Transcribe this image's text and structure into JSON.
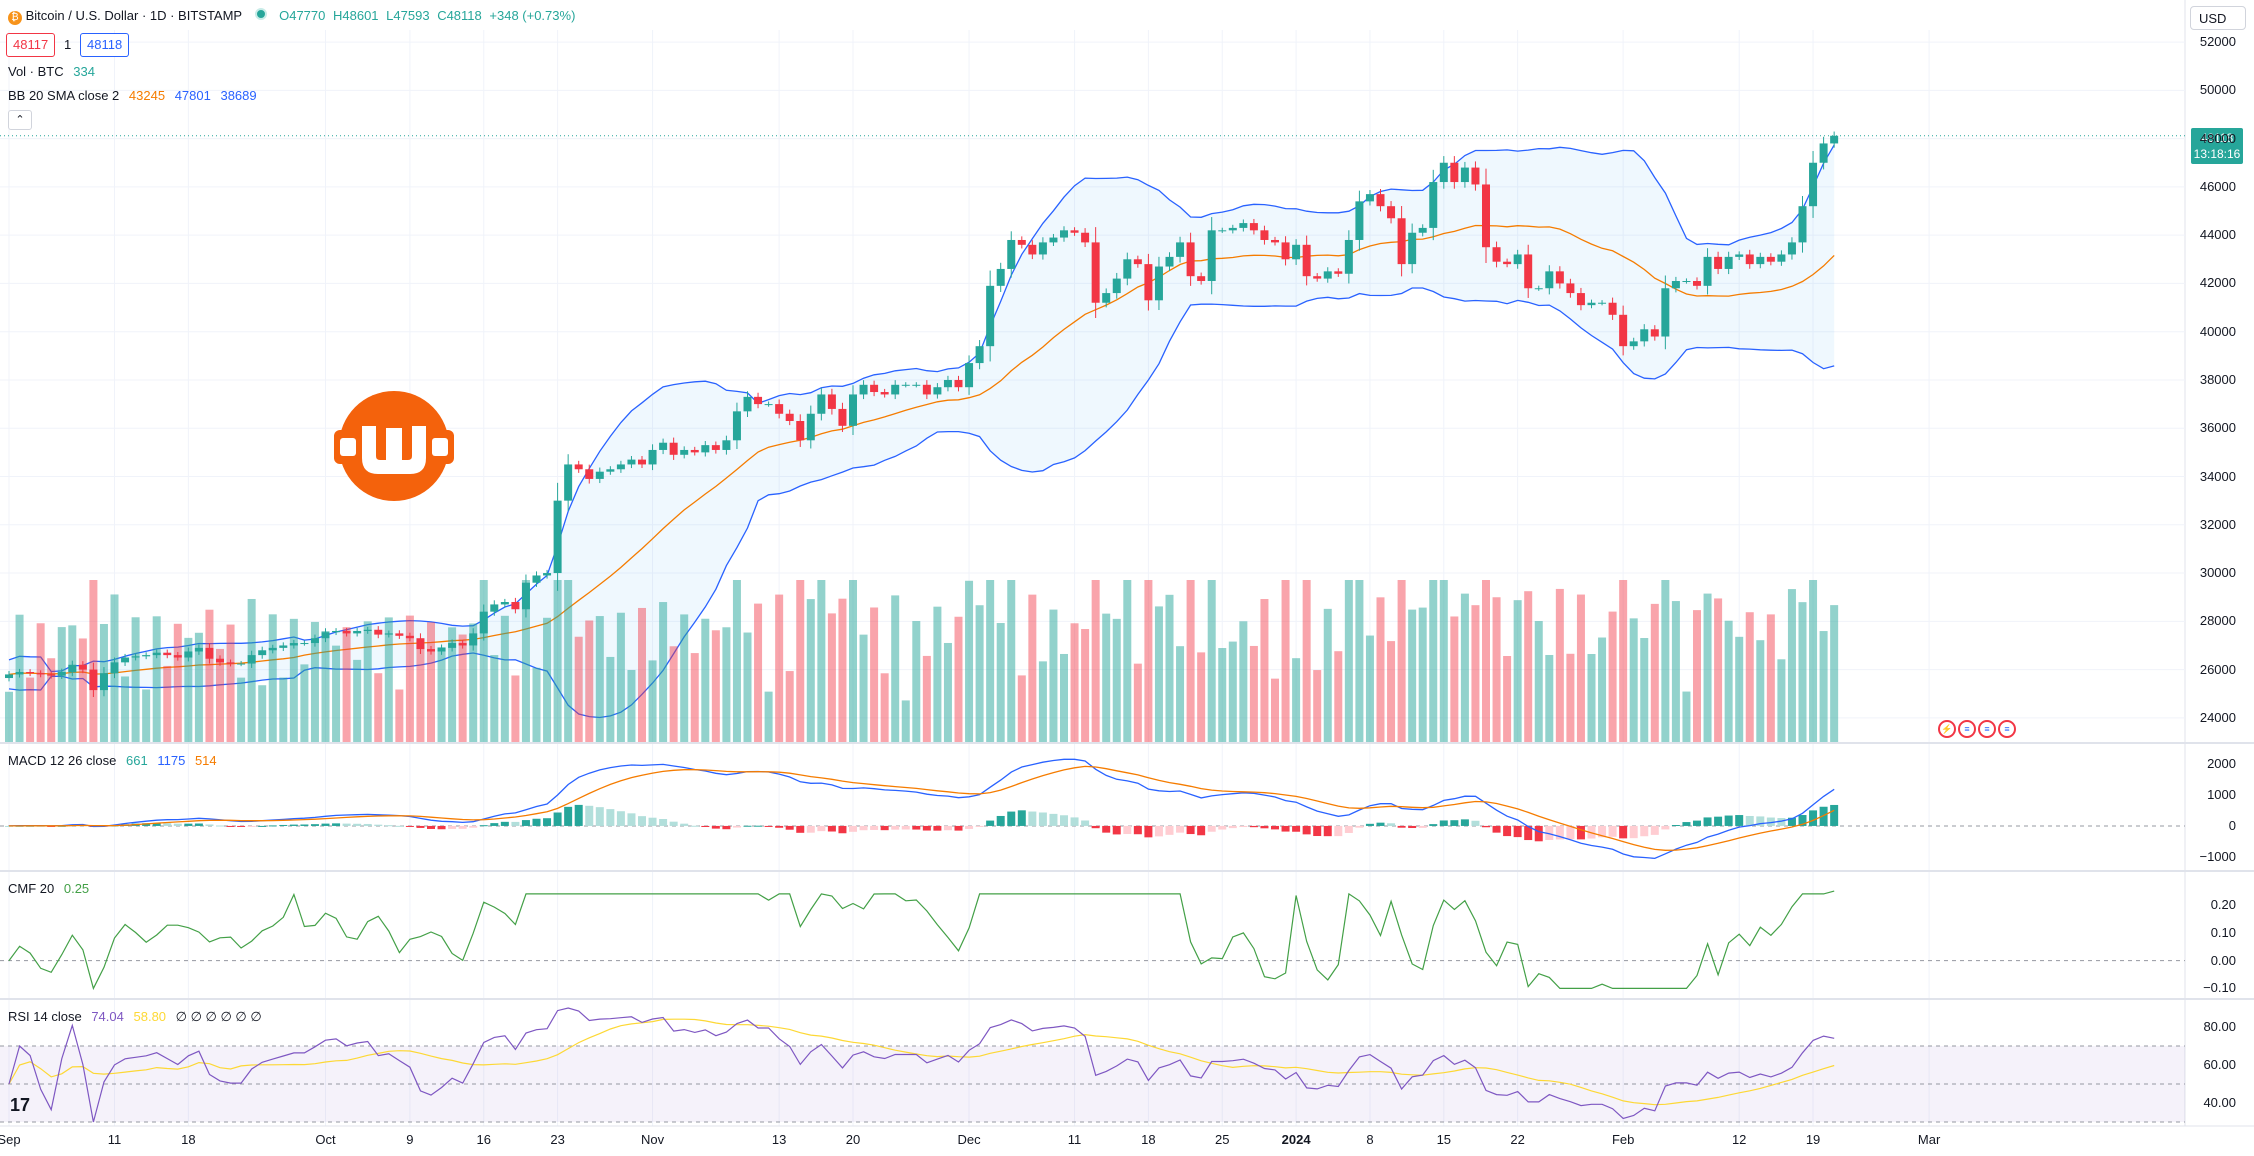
{
  "header": {
    "title": "Bitcoin / U.S. Dollar · 1D · BITSTAMP",
    "open": "O47770",
    "high": "H48601",
    "low": "L47593",
    "close": "C48118",
    "change": "+348 (+0.73%)",
    "sell_price": "48117",
    "spread": "1",
    "buy_price": "48118"
  },
  "legends": {
    "vol_label": "Vol · BTC",
    "vol_value": "334",
    "bb_label": "BB 20 SMA close 2",
    "bb_basis": "43245",
    "bb_upper": "47801",
    "bb_lower": "38689",
    "macd_label": "MACD 12 26 close",
    "macd_hist": "661",
    "macd_line": "1175",
    "macd_signal": "514",
    "cmf_label": "CMF 20",
    "cmf_value": "0.25",
    "rsi_label": "RSI 14 close",
    "rsi_value": "74.04",
    "rsi_ma": "58.80",
    "rsi_extra": "∅ ∅ ∅ ∅ ∅ ∅"
  },
  "currency_button": "USD",
  "last_price": {
    "price": "48118",
    "countdown": "13:18:16"
  },
  "collapse_icon": "chevron-up-icon",
  "colors": {
    "up": "#26a69a",
    "down": "#f23645",
    "bb": "#2962ff",
    "basis": "#f57c00",
    "rsi": "#7e57c2",
    "rsi_ma": "#fdd835",
    "cmf": "#43a047"
  },
  "price_axis": [
    "52000",
    "50000",
    "48000",
    "46000",
    "44000",
    "42000",
    "40000",
    "38000",
    "36000",
    "34000",
    "32000",
    "30000",
    "28000",
    "26000",
    "24000"
  ],
  "macd_axis": [
    "2000",
    "1000",
    "0",
    "−1000"
  ],
  "cmf_axis": [
    "0.20",
    "0.10",
    "0.00",
    "−0.10"
  ],
  "rsi_axis": [
    "80.00",
    "60.00",
    "40.00"
  ],
  "time_axis": [
    {
      "label": "Sep",
      "day": 0
    },
    {
      "label": "11",
      "day": 10
    },
    {
      "label": "18",
      "day": 17
    },
    {
      "label": "Oct",
      "day": 30
    },
    {
      "label": "9",
      "day": 38
    },
    {
      "label": "16",
      "day": 45
    },
    {
      "label": "23",
      "day": 52
    },
    {
      "label": "Nov",
      "day": 61
    },
    {
      "label": "13",
      "day": 73
    },
    {
      "label": "20",
      "day": 80
    },
    {
      "label": "Dec",
      "day": 91
    },
    {
      "label": "11",
      "day": 101
    },
    {
      "label": "18",
      "day": 108
    },
    {
      "label": "25",
      "day": 115
    },
    {
      "label": "2024",
      "day": 122
    },
    {
      "label": "8",
      "day": 129
    },
    {
      "label": "15",
      "day": 136
    },
    {
      "label": "22",
      "day": 143
    },
    {
      "label": "Feb",
      "day": 153
    },
    {
      "label": "12",
      "day": 164
    },
    {
      "label": "19",
      "day": 171
    },
    {
      "label": "Mar",
      "day": 182
    }
  ],
  "chart_data": {
    "type": "candlestick",
    "symbol": "BTCUSD",
    "start": "Sep 1",
    "closes": [
      25800,
      25900,
      25850,
      25800,
      25750,
      25900,
      26200,
      26000,
      25150,
      25850,
      26300,
      26500,
      26550,
      26600,
      26700,
      26600,
      26500,
      26750,
      26900,
      26450,
      26300,
      26250,
      26250,
      26600,
      26800,
      26900,
      27000,
      27100,
      27100,
      27300,
      27550,
      27600,
      27500,
      27600,
      27650,
      27450,
      27500,
      27400,
      27300,
      26850,
      26750,
      26900,
      27100,
      27000,
      27500,
      28400,
      28700,
      28800,
      28500,
      29600,
      29900,
      30000,
      33000,
      34500,
      34300,
      33900,
      34200,
      34300,
      34500,
      34700,
      34500,
      35100,
      35400,
      34900,
      35100,
      35000,
      35300,
      35100,
      35500,
      36700,
      37300,
      37000,
      37000,
      36600,
      36300,
      35500,
      36600,
      37400,
      36800,
      36100,
      37400,
      37800,
      37500,
      37400,
      37800,
      37800,
      37800,
      37400,
      37700,
      38000,
      37700,
      38700,
      39400,
      41900,
      42600,
      43800,
      43600,
      43200,
      43700,
      43900,
      44200,
      44100,
      43700,
      41200,
      41600,
      42200,
      43000,
      42800,
      41300,
      42700,
      43100,
      43700,
      42300,
      42100,
      44200,
      44200,
      44300,
      44500,
      44200,
      43800,
      43700,
      43000,
      43600,
      42300,
      42200,
      42500,
      42400,
      43800,
      45400,
      45700,
      45200,
      44700,
      42800,
      44100,
      44300,
      46200,
      47000,
      46200,
      46800,
      46100,
      43500,
      42900,
      42800,
      43200,
      41800,
      41800,
      42500,
      42000,
      41600,
      41100,
      41200,
      41200,
      40700,
      39400,
      39600,
      40100,
      39800,
      41800,
      42100,
      42100,
      41900,
      43100,
      42600,
      43100,
      43200,
      42800,
      43100,
      42900,
      43200,
      43700,
      45200,
      47000,
      47800,
      48118
    ],
    "bb_upper_last": 47801,
    "bb_basis_last": 43245,
    "bb_lower_last": 38689,
    "volume_last": 334,
    "macd_last": 1175,
    "signal_last": 514,
    "hist_last": 661,
    "cmf_last": 0.25,
    "rsi_last": 74.04,
    "rsi_ma_last": 58.8,
    "y_range": [
      23000,
      52500
    ],
    "macd_range": [
      -1300,
      2400
    ],
    "cmf_range": [
      -0.12,
      0.29
    ],
    "rsi_range": [
      30,
      90
    ],
    "grid": true
  }
}
